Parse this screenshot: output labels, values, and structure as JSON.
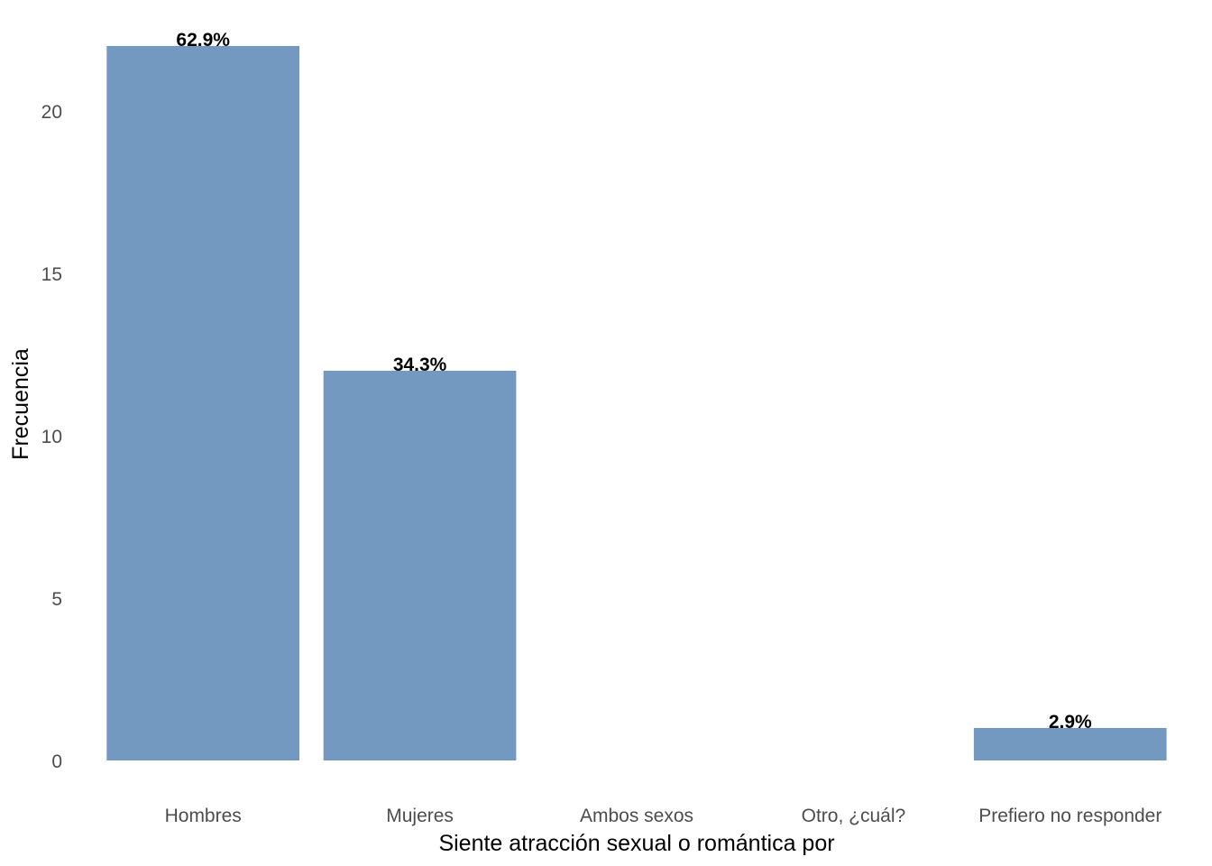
{
  "chart_data": {
    "type": "bar",
    "title": "",
    "xlabel": "Siente atracción sexual o romántica por",
    "ylabel": "Frecuencia",
    "categories": [
      "Hombres",
      "Mujeres",
      "Ambos sexos",
      "Otro, ¿cuál?",
      "Prefiero no responder"
    ],
    "values": [
      22,
      12,
      0,
      0,
      1
    ],
    "data_labels": [
      "62.9%",
      "34.3%",
      "",
      "",
      "2.9%"
    ],
    "yticks": [
      0,
      5,
      10,
      15,
      20
    ],
    "ylim": [
      0,
      22
    ],
    "grid": false,
    "legend": "none",
    "bar_color": "#7399c1"
  }
}
